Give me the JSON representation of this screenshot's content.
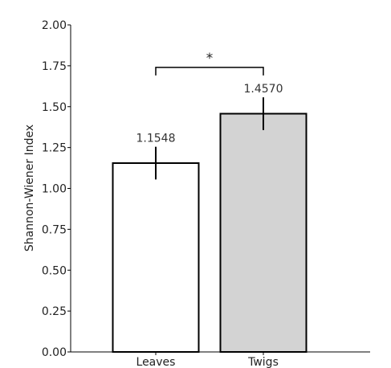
{
  "chart_data": {
    "type": "bar",
    "categories": [
      "Leaves",
      "Twigs"
    ],
    "values": [
      1.1548,
      1.457
    ],
    "errors": [
      0.1,
      0.1
    ],
    "data_labels": [
      "1.1548",
      "1.4570"
    ],
    "bar_colors": [
      "#ffffff",
      "#d3d3d3"
    ],
    "ylabel": "Shannon-Wiener Index",
    "xlabel": "",
    "ylim": [
      0,
      2.0
    ],
    "yticks": [
      "0.00",
      "0.25",
      "0.50",
      "0.75",
      "1.00",
      "1.25",
      "1.50",
      "1.75",
      "2.00"
    ],
    "significance": {
      "label": "*",
      "between": [
        0,
        1
      ],
      "level": 1.74
    },
    "grid": false,
    "legend": "none"
  }
}
